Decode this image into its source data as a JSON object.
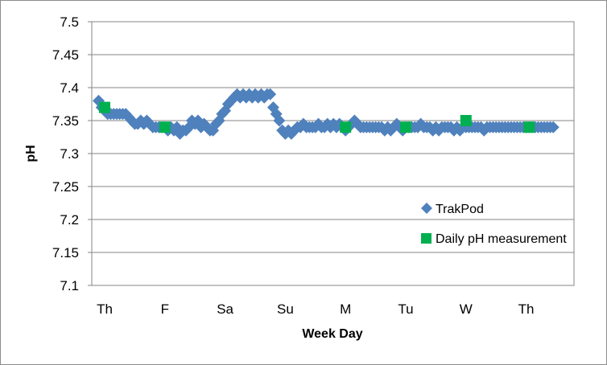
{
  "chart_data": {
    "type": "scatter",
    "title": "",
    "xlabel": "Week Day",
    "ylabel": "pH",
    "categories": [
      "Th",
      "F",
      "Sa",
      "Su",
      "M",
      "Tu",
      "W",
      "Th"
    ],
    "xlim": [
      0,
      7.6
    ],
    "ylim": [
      7.1,
      7.5
    ],
    "yticks": [
      "7.1",
      "7.15",
      "7.2",
      "7.25",
      "7.3",
      "7.35",
      "7.4",
      "7.45",
      "7.5"
    ],
    "grid": "horizontal",
    "legend_position": "right",
    "series": [
      {
        "name": "TrakPod",
        "color": "#4f81bd",
        "marker": "diamond",
        "points": [
          [
            -0.1,
            7.38
          ],
          [
            -0.05,
            7.37
          ],
          [
            0.0,
            7.365
          ],
          [
            0.05,
            7.36
          ],
          [
            0.1,
            7.36
          ],
          [
            0.15,
            7.36
          ],
          [
            0.2,
            7.36
          ],
          [
            0.25,
            7.36
          ],
          [
            0.3,
            7.36
          ],
          [
            0.35,
            7.36
          ],
          [
            0.4,
            7.355
          ],
          [
            0.45,
            7.35
          ],
          [
            0.5,
            7.345
          ],
          [
            0.55,
            7.345
          ],
          [
            0.6,
            7.35
          ],
          [
            0.65,
            7.345
          ],
          [
            0.7,
            7.35
          ],
          [
            0.75,
            7.345
          ],
          [
            0.8,
            7.34
          ],
          [
            0.85,
            7.34
          ],
          [
            0.9,
            7.34
          ],
          [
            0.95,
            7.34
          ],
          [
            1.0,
            7.34
          ],
          [
            1.05,
            7.335
          ],
          [
            1.1,
            7.34
          ],
          [
            1.15,
            7.335
          ],
          [
            1.2,
            7.34
          ],
          [
            1.25,
            7.33
          ],
          [
            1.3,
            7.335
          ],
          [
            1.35,
            7.335
          ],
          [
            1.4,
            7.34
          ],
          [
            1.45,
            7.35
          ],
          [
            1.5,
            7.345
          ],
          [
            1.55,
            7.35
          ],
          [
            1.6,
            7.34
          ],
          [
            1.65,
            7.345
          ],
          [
            1.7,
            7.34
          ],
          [
            1.75,
            7.335
          ],
          [
            1.8,
            7.335
          ],
          [
            1.85,
            7.345
          ],
          [
            1.9,
            7.35
          ],
          [
            1.95,
            7.36
          ],
          [
            2.0,
            7.365
          ],
          [
            2.05,
            7.375
          ],
          [
            2.1,
            7.38
          ],
          [
            2.15,
            7.385
          ],
          [
            2.2,
            7.39
          ],
          [
            2.25,
            7.385
          ],
          [
            2.3,
            7.39
          ],
          [
            2.35,
            7.385
          ],
          [
            2.4,
            7.39
          ],
          [
            2.45,
            7.385
          ],
          [
            2.5,
            7.39
          ],
          [
            2.55,
            7.385
          ],
          [
            2.6,
            7.39
          ],
          [
            2.65,
            7.385
          ],
          [
            2.7,
            7.39
          ],
          [
            2.75,
            7.39
          ],
          [
            2.8,
            7.37
          ],
          [
            2.85,
            7.36
          ],
          [
            2.9,
            7.35
          ],
          [
            2.95,
            7.335
          ],
          [
            3.0,
            7.33
          ],
          [
            3.05,
            7.335
          ],
          [
            3.1,
            7.33
          ],
          [
            3.15,
            7.335
          ],
          [
            3.2,
            7.34
          ],
          [
            3.25,
            7.34
          ],
          [
            3.3,
            7.345
          ],
          [
            3.35,
            7.34
          ],
          [
            3.4,
            7.34
          ],
          [
            3.45,
            7.34
          ],
          [
            3.5,
            7.34
          ],
          [
            3.55,
            7.345
          ],
          [
            3.6,
            7.34
          ],
          [
            3.65,
            7.34
          ],
          [
            3.7,
            7.345
          ],
          [
            3.75,
            7.34
          ],
          [
            3.8,
            7.345
          ],
          [
            3.85,
            7.34
          ],
          [
            3.9,
            7.345
          ],
          [
            3.95,
            7.34
          ],
          [
            4.0,
            7.335
          ],
          [
            4.05,
            7.34
          ],
          [
            4.1,
            7.345
          ],
          [
            4.15,
            7.35
          ],
          [
            4.2,
            7.345
          ],
          [
            4.25,
            7.34
          ],
          [
            4.3,
            7.34
          ],
          [
            4.35,
            7.34
          ],
          [
            4.4,
            7.34
          ],
          [
            4.45,
            7.34
          ],
          [
            4.5,
            7.34
          ],
          [
            4.55,
            7.34
          ],
          [
            4.6,
            7.34
          ],
          [
            4.65,
            7.335
          ],
          [
            4.7,
            7.34
          ],
          [
            4.75,
            7.335
          ],
          [
            4.8,
            7.34
          ],
          [
            4.85,
            7.345
          ],
          [
            4.9,
            7.34
          ],
          [
            4.95,
            7.335
          ],
          [
            5.0,
            7.34
          ],
          [
            5.05,
            7.34
          ],
          [
            5.1,
            7.34
          ],
          [
            5.15,
            7.34
          ],
          [
            5.2,
            7.34
          ],
          [
            5.25,
            7.345
          ],
          [
            5.3,
            7.34
          ],
          [
            5.35,
            7.34
          ],
          [
            5.4,
            7.34
          ],
          [
            5.45,
            7.335
          ],
          [
            5.5,
            7.34
          ],
          [
            5.55,
            7.335
          ],
          [
            5.6,
            7.34
          ],
          [
            5.65,
            7.34
          ],
          [
            5.7,
            7.34
          ],
          [
            5.75,
            7.34
          ],
          [
            5.8,
            7.335
          ],
          [
            5.85,
            7.34
          ],
          [
            5.9,
            7.335
          ],
          [
            5.95,
            7.34
          ],
          [
            6.0,
            7.34
          ],
          [
            6.05,
            7.34
          ],
          [
            6.1,
            7.34
          ],
          [
            6.15,
            7.34
          ],
          [
            6.2,
            7.34
          ],
          [
            6.25,
            7.34
          ],
          [
            6.3,
            7.335
          ],
          [
            6.35,
            7.34
          ],
          [
            6.4,
            7.34
          ],
          [
            6.45,
            7.34
          ],
          [
            6.5,
            7.34
          ],
          [
            6.55,
            7.34
          ],
          [
            6.6,
            7.34
          ],
          [
            6.65,
            7.34
          ],
          [
            6.7,
            7.34
          ],
          [
            6.75,
            7.34
          ],
          [
            6.8,
            7.34
          ],
          [
            6.85,
            7.34
          ],
          [
            6.9,
            7.34
          ],
          [
            6.95,
            7.34
          ],
          [
            7.0,
            7.34
          ],
          [
            7.05,
            7.34
          ],
          [
            7.1,
            7.34
          ],
          [
            7.15,
            7.34
          ],
          [
            7.2,
            7.34
          ],
          [
            7.25,
            7.34
          ],
          [
            7.3,
            7.34
          ],
          [
            7.35,
            7.34
          ],
          [
            7.4,
            7.34
          ],
          [
            7.45,
            7.34
          ]
        ]
      },
      {
        "name": "Daily pH measurement",
        "color": "#00b050",
        "marker": "square",
        "points": [
          [
            0.0,
            7.37
          ],
          [
            1.0,
            7.34
          ],
          [
            4.0,
            7.34
          ],
          [
            5.0,
            7.34
          ],
          [
            6.0,
            7.35
          ],
          [
            7.05,
            7.34
          ]
        ]
      }
    ]
  }
}
